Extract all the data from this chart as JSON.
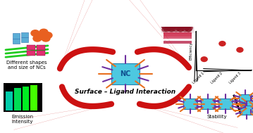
{
  "bg_color": "#ffffff",
  "nc_color": "#4dc8e0",
  "nc_label": "NC",
  "arrow_color": "#cc1111",
  "ligand_spikes_orange": "#e87020",
  "ligand_spikes_purple": "#7030a0",
  "text_surface": "Surface – Ligand Interaction",
  "text_shapes": "Different shapes\nand size of NCs",
  "text_emission": "Emission\nIntensity",
  "text_stability": "Stability",
  "text_efficiency": "Efficiency",
  "scatter_points": [
    [
      0.15,
      0.28
    ],
    [
      0.48,
      0.68
    ],
    [
      0.8,
      0.52
    ]
  ],
  "scatter_color": "#cc2222",
  "xtick_labels": [
    "Ligand 1",
    "Ligand 2",
    "Ligand 3"
  ],
  "sq_color": "#5baed6",
  "orange_color": "#e86020",
  "green_color": "#22cc22",
  "pink_color": "#e03070"
}
